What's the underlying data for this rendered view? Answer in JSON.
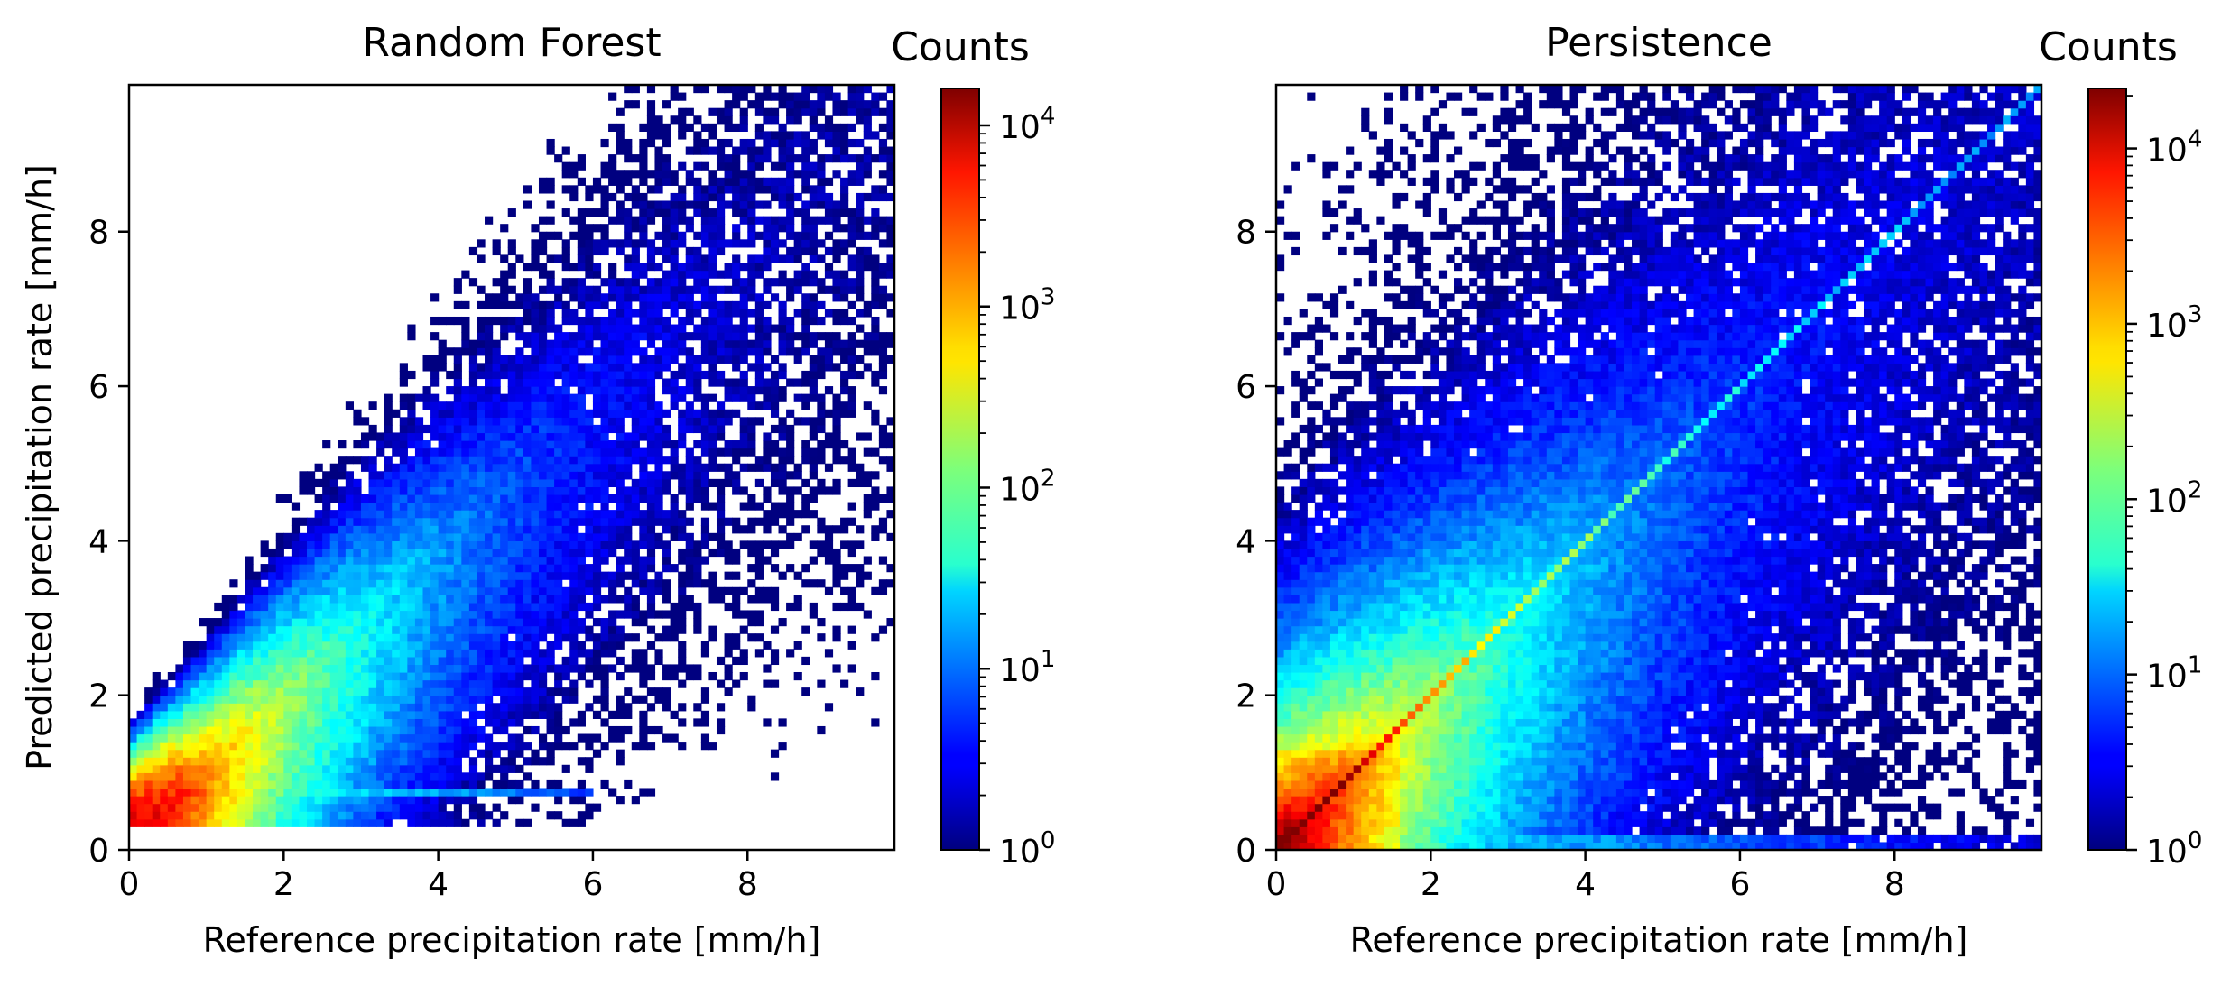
{
  "figure": {
    "colormap": "jet",
    "ylabel": "Predicted precipitation rate [mm/h]"
  },
  "chart_data": [
    {
      "type": "heatmap",
      "title": "Random Forest",
      "xlabel": "Reference precipitation rate [mm/h]",
      "ylabel": "Predicted precipitation rate [mm/h]",
      "xlim": [
        0,
        9.9
      ],
      "ylim": [
        0,
        9.9
      ],
      "xticks": [
        0,
        2,
        4,
        6,
        8
      ],
      "yticks": [
        0,
        2,
        4,
        6,
        8
      ],
      "bins": 99,
      "color_scale": "log",
      "colorbar": {
        "title": "Counts",
        "range": [
          1,
          16000
        ],
        "ticks": [
          {
            "base": "10",
            "exp": "0"
          },
          {
            "base": "10",
            "exp": "1"
          },
          {
            "base": "10",
            "exp": "2"
          },
          {
            "base": "10",
            "exp": "3"
          },
          {
            "base": "10",
            "exp": "4"
          }
        ]
      },
      "density_model": {
        "min_prediction": 0.3,
        "peak_count": 16000,
        "ridge": "near 1:1 line, peak near (0.6, 0.8)",
        "floor_band_y": 0.75
      }
    },
    {
      "type": "heatmap",
      "title": "Persistence",
      "xlabel": "Reference precipitation rate [mm/h]",
      "ylabel": "",
      "xlim": [
        0,
        9.9
      ],
      "ylim": [
        0,
        9.9
      ],
      "xticks": [
        0,
        2,
        4,
        6,
        8
      ],
      "yticks": [
        0,
        2,
        4,
        6,
        8
      ],
      "bins": 99,
      "color_scale": "log",
      "colorbar": {
        "title": "Counts",
        "range": [
          1,
          22000
        ],
        "ticks": [
          {
            "base": "10",
            "exp": "0"
          },
          {
            "base": "10",
            "exp": "1"
          },
          {
            "base": "10",
            "exp": "2"
          },
          {
            "base": "10",
            "exp": "3"
          },
          {
            "base": "10",
            "exp": "4"
          }
        ]
      },
      "density_model": {
        "min_prediction": 0.0,
        "peak_count": 22000,
        "ridge": "exact 1:1 diagonal, peak near (0.2, 0.2)",
        "floor_band_y": 0.15
      }
    }
  ]
}
